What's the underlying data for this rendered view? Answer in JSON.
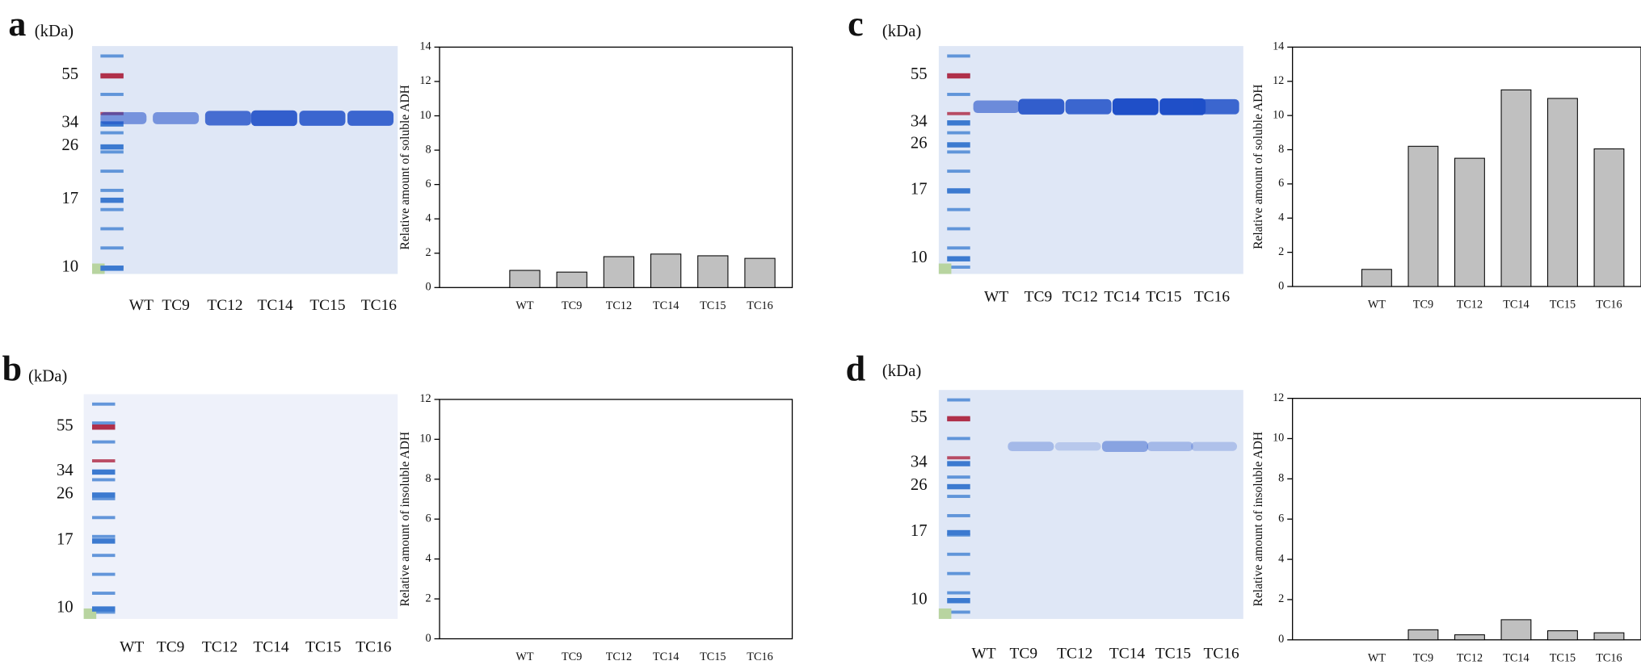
{
  "panels": [
    {
      "letter": "a",
      "unit": "(kDa)",
      "markers": [
        55,
        34,
        26,
        17,
        10
      ],
      "lanes": [
        "WT",
        "TC9",
        "TC12",
        "TC14",
        "TC15",
        "TC16"
      ]
    },
    {
      "letter": "b",
      "unit": "(kDa)",
      "markers": [
        55,
        34,
        26,
        17,
        10
      ],
      "lanes": [
        "WT",
        "TC9",
        "TC12",
        "TC14",
        "TC15",
        "TC16"
      ]
    },
    {
      "letter": "c",
      "unit": "(kDa)",
      "markers": [
        55,
        34,
        26,
        17,
        10
      ],
      "lanes": [
        "WT",
        "TC9",
        "TC12",
        "TC14",
        "TC15",
        "TC16"
      ]
    },
    {
      "letter": "d",
      "unit": "(kDa)",
      "markers": [
        55,
        34,
        26,
        17,
        10
      ],
      "lanes": [
        "WT",
        "TC9",
        "TC12",
        "TC14",
        "TC15",
        "TC16"
      ]
    }
  ],
  "chart_data": [
    {
      "type": "bar",
      "ylabel": "Relative amount of soluble ADH",
      "categories": [
        "WT",
        "TC9",
        "TC12",
        "TC14",
        "TC15",
        "TC16"
      ],
      "values": [
        1.0,
        0.9,
        1.8,
        1.95,
        1.85,
        1.7
      ],
      "color": "#c0c0c0",
      "ylim": [
        0,
        14
      ],
      "yticks": [
        0,
        2,
        4,
        6,
        8,
        10,
        12,
        14
      ]
    },
    {
      "type": "bar",
      "ylabel": "Relative amount of insoluble ADH",
      "categories": [
        "WT",
        "TC9",
        "TC12",
        "TC14",
        "TC15",
        "TC16"
      ],
      "values": [
        0,
        0,
        0,
        0,
        0,
        0
      ],
      "color": "#c0c0c0",
      "ylim": [
        0,
        12
      ],
      "yticks": [
        0,
        2,
        4,
        6,
        8,
        10,
        12
      ]
    },
    {
      "type": "bar",
      "ylabel": "Relative amount of soluble ADH",
      "categories": [
        "WT",
        "TC9",
        "TC12",
        "TC14",
        "TC15",
        "TC16"
      ],
      "values": [
        1.0,
        8.2,
        7.5,
        11.5,
        11.0,
        8.05
      ],
      "color": "#c0c0c0",
      "ylim": [
        0,
        14
      ],
      "yticks": [
        0,
        2,
        4,
        6,
        8,
        10,
        12,
        14
      ]
    },
    {
      "type": "bar",
      "ylabel": "Relative amount of insoluble ADH",
      "categories": [
        "WT",
        "TC9",
        "TC12",
        "TC14",
        "TC15",
        "TC16"
      ],
      "values": [
        0,
        0.5,
        0.25,
        1.0,
        0.45,
        0.35
      ],
      "color": "#c0c0c0",
      "ylim": [
        0,
        12
      ],
      "yticks": [
        0,
        2,
        4,
        6,
        8,
        10,
        12
      ]
    }
  ]
}
